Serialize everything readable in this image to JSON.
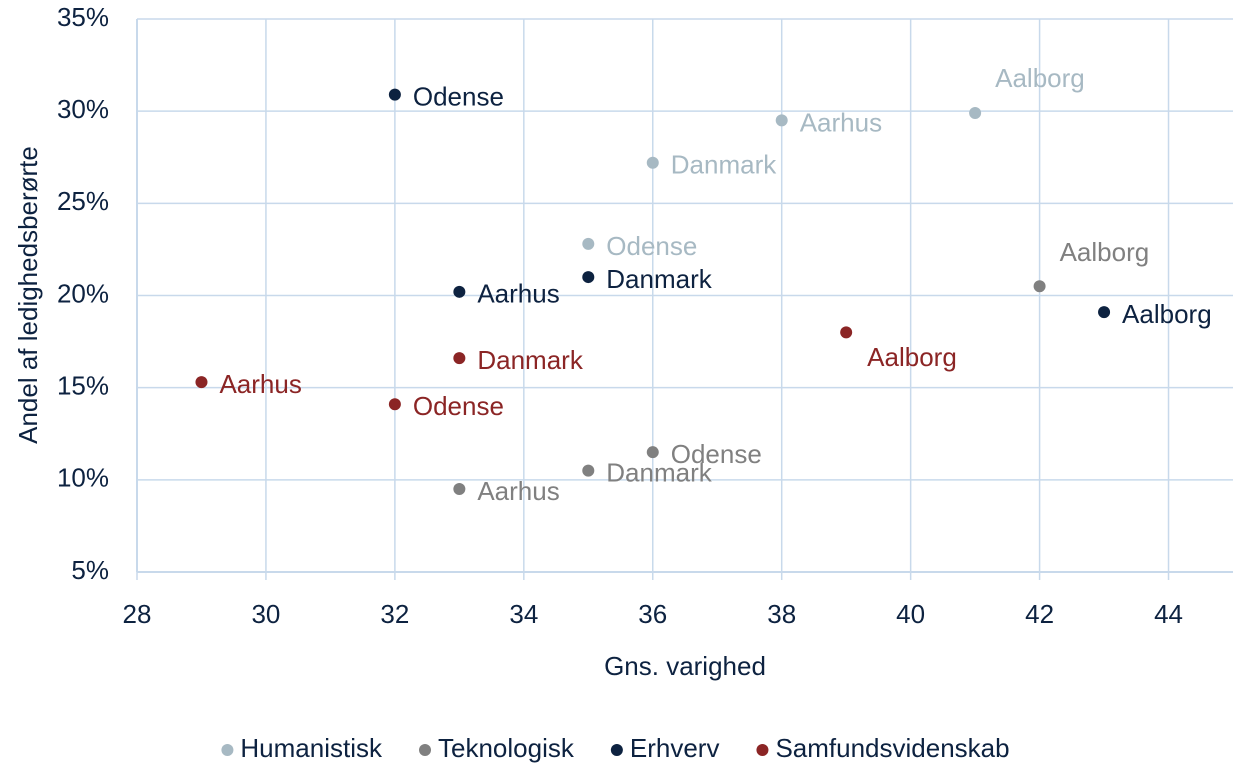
{
  "chart_data": {
    "type": "scatter",
    "x_label": "Gns. varighed",
    "y_label": "Andel af ledighedsberørte",
    "xlim": [
      28,
      45
    ],
    "xticks": [
      28,
      30,
      32,
      34,
      36,
      38,
      40,
      42,
      44
    ],
    "ylim": [
      5,
      35
    ],
    "yticks": [
      {
        "value": 5,
        "label": "5%"
      },
      {
        "value": 10,
        "label": "10%"
      },
      {
        "value": 15,
        "label": "15%"
      },
      {
        "value": 20,
        "label": "20%"
      },
      {
        "value": 25,
        "label": "25%"
      },
      {
        "value": 30,
        "label": "30%"
      },
      {
        "value": 35,
        "label": "35%"
      }
    ],
    "grid": true,
    "legend": "bottom",
    "series": [
      {
        "name": "Humanistisk",
        "color": "#a7b9c3",
        "x": [
          41,
          38,
          36,
          35
        ],
        "values": [
          29.9,
          29.5,
          27.2,
          22.8
        ],
        "labels": [
          "Aalborg",
          "Aarhus",
          "Danmark",
          "Odense"
        ]
      },
      {
        "name": "Teknologisk",
        "color": "#808080",
        "x": [
          42,
          36,
          35,
          33
        ],
        "values": [
          20.5,
          11.5,
          10.5,
          9.5
        ],
        "labels": [
          "Aalborg",
          "Odense",
          "Danmark",
          "Aarhus"
        ]
      },
      {
        "name": "Erhverv",
        "color": "#0d2240",
        "x": [
          32,
          35,
          33,
          43
        ],
        "values": [
          30.9,
          21.0,
          20.2,
          19.1
        ],
        "labels": [
          "Odense",
          "Danmark",
          "Aarhus",
          "Aalborg"
        ]
      },
      {
        "name": "Samfundsvidenskab",
        "color": "#8b2525",
        "x": [
          39,
          33,
          29,
          32
        ],
        "values": [
          18.0,
          16.6,
          15.3,
          14.1
        ],
        "labels": [
          "Aalborg",
          "Danmark",
          "Aarhus",
          "Odense"
        ]
      }
    ]
  }
}
